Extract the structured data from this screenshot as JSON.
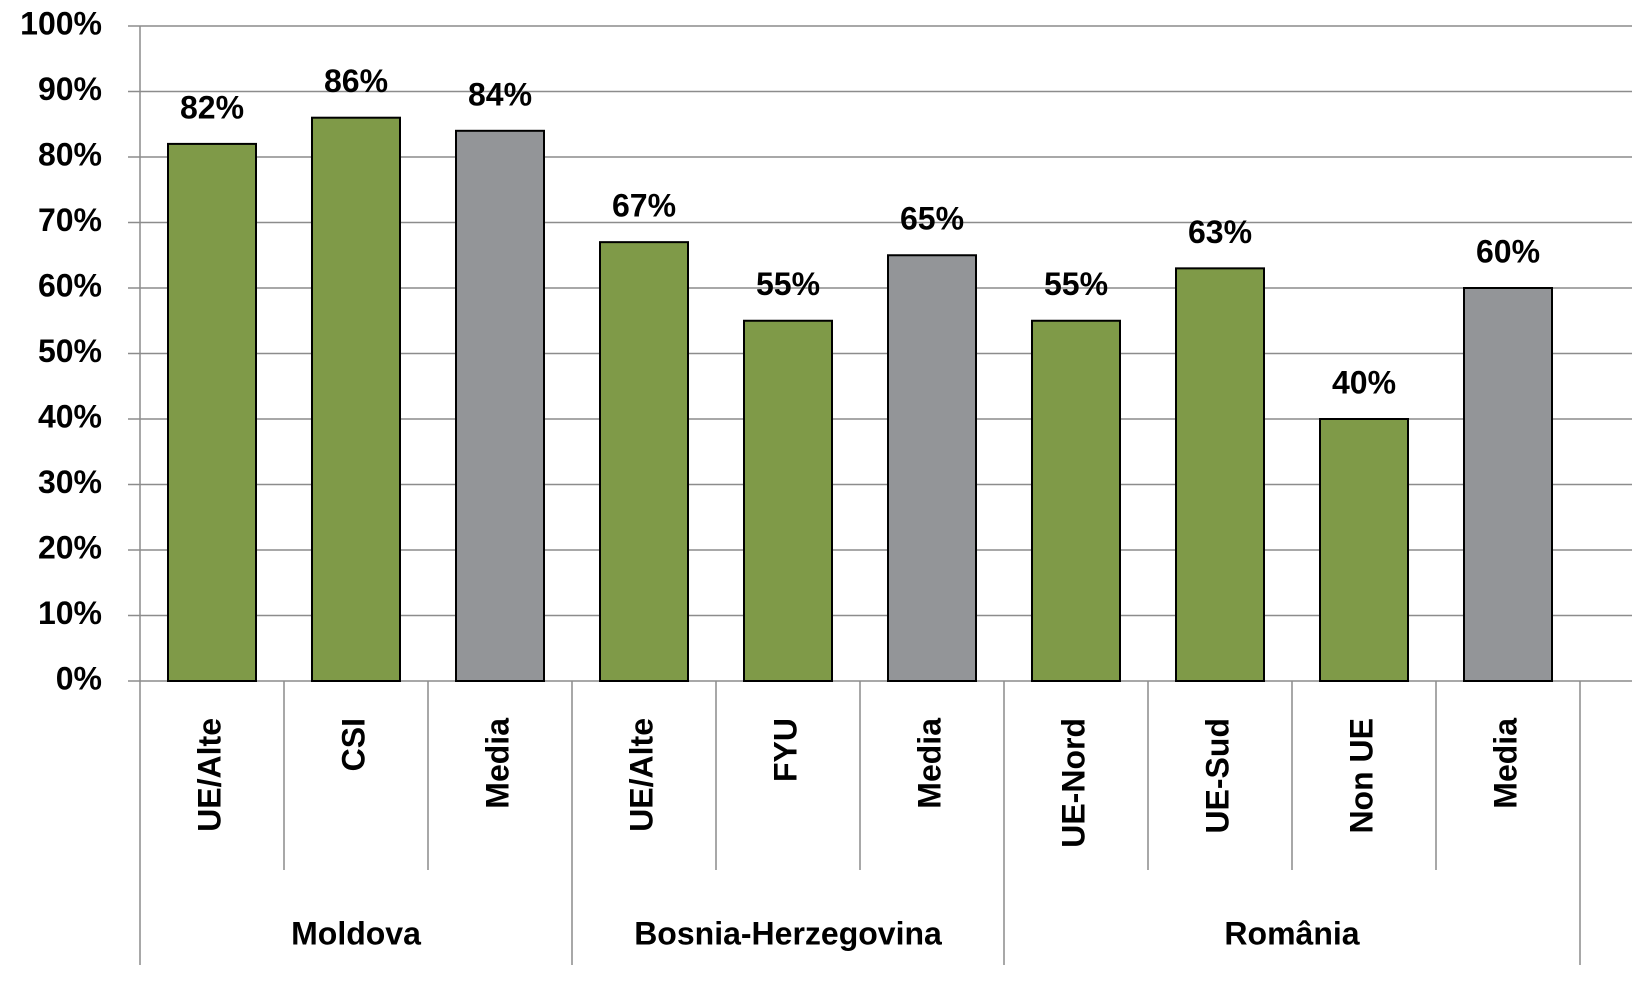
{
  "chart_data": {
    "type": "bar",
    "groups": [
      {
        "name": "Moldova",
        "categories": [
          "UE/Alte",
          "CSI",
          "Media"
        ],
        "values": [
          82,
          86,
          84
        ],
        "value_labels": [
          "82%",
          "86%",
          "84%"
        ],
        "colors": [
          "#7f9a48",
          "#7f9a48",
          "#939598"
        ]
      },
      {
        "name": "Bosnia-Herzegovina",
        "categories": [
          "UE/Alte",
          "FYU",
          "Media"
        ],
        "values": [
          67,
          55,
          65
        ],
        "value_labels": [
          "67%",
          "55%",
          "65%"
        ],
        "colors": [
          "#7f9a48",
          "#7f9a48",
          "#939598"
        ]
      },
      {
        "name": "România",
        "categories": [
          "UE-Nord",
          "UE-Sud",
          "Non UE",
          "Media"
        ],
        "values": [
          55,
          63,
          40,
          60
        ],
        "value_labels": [
          "55%",
          "63%",
          "40%",
          "60%"
        ],
        "colors": [
          "#7f9a48",
          "#7f9a48",
          "#7f9a48",
          "#939598"
        ]
      }
    ],
    "ylim": [
      0,
      100
    ],
    "yticks": [
      {
        "value": 0,
        "label": "0%"
      },
      {
        "value": 10,
        "label": "10%"
      },
      {
        "value": 20,
        "label": "20%"
      },
      {
        "value": 30,
        "label": "30%"
      },
      {
        "value": 40,
        "label": "40%"
      },
      {
        "value": 50,
        "label": "50%"
      },
      {
        "value": 60,
        "label": "60%"
      },
      {
        "value": 70,
        "label": "70%"
      },
      {
        "value": 80,
        "label": "80%"
      },
      {
        "value": 90,
        "label": "90%"
      },
      {
        "value": 100,
        "label": "100%"
      }
    ],
    "grid": true
  }
}
